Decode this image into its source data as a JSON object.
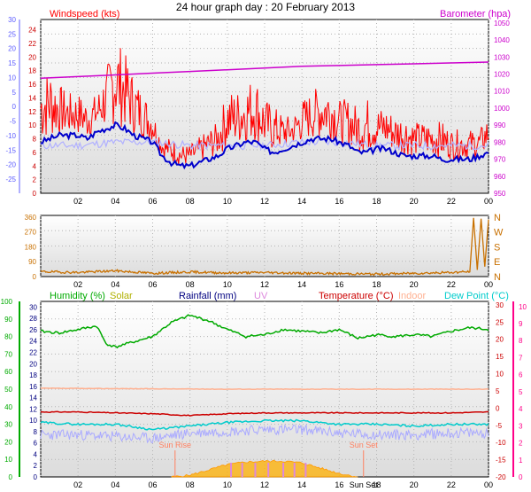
{
  "page": {
    "title": "24 hour graph day : 20 February 2013"
  },
  "colors": {
    "bg": "#ffffff",
    "plot_bg_top": "#ffffff",
    "plot_bg_bottom": "#dcdcdc",
    "grid": "#b4b4b4",
    "windspeed": "#ff0000",
    "windavg": "#0000cc",
    "windchill_light": "#b0b0ff",
    "barometer": "#cc00cc",
    "direction": "#c87000",
    "humidity": "#00aa00",
    "solar": "#ffb000",
    "solar_label": "#b0b000",
    "rainfall": "#000080",
    "uv": "#dd88dd",
    "temperature": "#cc0000",
    "indoor": "#ffb090",
    "dewpoint": "#00cccc",
    "dewpoint_light": "#aaaaff",
    "sun_marker": "#ff8060",
    "left_axis_wind": "#cc0000",
    "left_axis_blue": "#6060ff",
    "left_axis_green": "#00aa00",
    "right_axis_pink": "#ff0088"
  },
  "chart_data": [
    {
      "id": "wind",
      "type": "line",
      "x_labels": [
        "02",
        "04",
        "06",
        "08",
        "10",
        "12",
        "14",
        "16",
        "18",
        "20",
        "22",
        "00"
      ],
      "xlim": [
        0,
        24
      ],
      "legend_left": "Windspeed (kts)",
      "legend_right": "Barometer (hpa)",
      "left_ticks_outer": [
        "-25",
        "-20",
        "-15",
        "-10",
        "-5",
        "0",
        "5",
        "10",
        "15",
        "20",
        "25",
        "30"
      ],
      "left_ticks_inner": [
        "0",
        "2",
        "4",
        "6",
        "8",
        "10",
        "12",
        "14",
        "16",
        "18",
        "20",
        "22",
        "24"
      ],
      "right_ticks": [
        "950",
        "960",
        "970",
        "980",
        "990",
        "1000",
        "1010",
        "1020",
        "1030",
        "1040",
        "1050"
      ],
      "ylim": [
        0,
        25.5
      ],
      "y2lim": [
        950,
        1052
      ],
      "grid": true,
      "series": [
        {
          "key": "gust",
          "x": [
            0.0,
            0.5,
            1.0,
            1.5,
            2.0,
            2.5,
            3.0,
            3.5,
            4.0,
            4.5,
            5.0,
            5.5,
            6.0,
            6.5,
            7.0,
            7.5,
            8.0,
            8.5,
            9.0,
            9.5,
            10.0,
            10.5,
            11.0,
            11.5,
            12.0,
            12.5,
            13.0,
            13.5,
            14.0,
            14.5,
            15.0,
            15.5,
            16.0,
            16.5,
            17.0,
            17.5,
            18.0,
            18.5,
            19.0,
            19.5,
            20.0,
            20.5,
            21.0,
            21.5,
            22.0,
            22.5,
            23.0,
            23.5,
            24.0
          ],
          "y": [
            14,
            15,
            13,
            12,
            12,
            11,
            12,
            15,
            19,
            17,
            14,
            12,
            10,
            6,
            6,
            5,
            5,
            6,
            7,
            8,
            12,
            12,
            13,
            14,
            11,
            10,
            9,
            9,
            11,
            12,
            13,
            13,
            11,
            11,
            10,
            11,
            10,
            10,
            9,
            9,
            8,
            8,
            8,
            8,
            7,
            7,
            7,
            7,
            9
          ]
        },
        {
          "key": "average",
          "x": [
            0.0,
            0.5,
            1.0,
            1.5,
            2.0,
            2.5,
            3.0,
            3.5,
            4.0,
            4.5,
            5.0,
            5.5,
            6.0,
            6.5,
            7.0,
            7.5,
            8.0,
            8.5,
            9.0,
            9.5,
            10.0,
            10.5,
            11.0,
            11.5,
            12.0,
            12.5,
            13.0,
            13.5,
            14.0,
            14.5,
            15.0,
            15.5,
            16.0,
            16.5,
            17.0,
            17.5,
            18.0,
            18.5,
            19.0,
            19.5,
            20.0,
            20.5,
            21.0,
            21.5,
            22.0,
            22.5,
            23.0,
            23.5,
            24.0
          ],
          "y": [
            7.5,
            8,
            8.5,
            8.5,
            8.5,
            8,
            9,
            9.5,
            10,
            9.5,
            8.5,
            8,
            7.5,
            5.5,
            4.5,
            4,
            4,
            4.5,
            5,
            5.5,
            6.5,
            7,
            7.5,
            7.5,
            6.5,
            6,
            6.5,
            7,
            7.5,
            8,
            8,
            8,
            7.5,
            7,
            6,
            6,
            6.5,
            6.5,
            6,
            5.5,
            5.5,
            5.5,
            5.5,
            5,
            5,
            5,
            5,
            5.5,
            6
          ]
        },
        {
          "key": "windchill",
          "x": [
            0,
            2,
            4,
            6,
            8,
            10,
            12,
            14,
            16,
            18,
            20,
            22,
            24
          ],
          "y": [
            7,
            7,
            7.5,
            7.5,
            7,
            7,
            7,
            7.5,
            7.5,
            7,
            7,
            7,
            7
          ]
        },
        {
          "key": "barometer",
          "axis": "right",
          "x": [
            0,
            2,
            4,
            6,
            8,
            10,
            12,
            14,
            16,
            18,
            20,
            22,
            24
          ],
          "y": [
            1017.5,
            1018.5,
            1019.5,
            1020.5,
            1021.5,
            1022.5,
            1023.5,
            1024.5,
            1025,
            1025.5,
            1026,
            1026.5,
            1027
          ]
        }
      ]
    },
    {
      "id": "direction",
      "type": "line",
      "x_labels": [
        "02",
        "04",
        "06",
        "08",
        "10",
        "12",
        "14",
        "16",
        "18",
        "20",
        "22",
        "00"
      ],
      "xlim": [
        0,
        24
      ],
      "left_ticks": [
        "0",
        "90",
        "180",
        "270",
        "360"
      ],
      "right_labels": [
        "N",
        "W",
        "S",
        "E",
        "N"
      ],
      "ylim": [
        0,
        370
      ],
      "grid": true,
      "series": [
        {
          "key": "direction",
          "x": [
            0,
            2,
            4,
            6,
            8,
            10,
            12,
            14,
            16,
            18,
            20,
            22,
            23,
            23.2,
            23.4,
            23.6,
            23.8,
            24
          ],
          "y": [
            30,
            25,
            35,
            20,
            28,
            22,
            25,
            20,
            18,
            15,
            20,
            25,
            30,
            355,
            40,
            350,
            60,
            345
          ]
        }
      ]
    },
    {
      "id": "temperature",
      "type": "line",
      "x_labels": [
        "02",
        "04",
        "06",
        "08",
        "10",
        "12",
        "14",
        "16",
        "Sun Set",
        "18",
        "20",
        "22",
        "00"
      ],
      "xlim": [
        0,
        24
      ],
      "legend": [
        "Humidity (%)",
        "Solar",
        "Rainfall (mm)",
        "UV",
        "Temperature (°C)",
        "Indoor",
        "Dew Point (°C)"
      ],
      "left_ticks_outer": [
        "0",
        "10",
        "20",
        "30",
        "40",
        "50",
        "60",
        "70",
        "80",
        "90",
        "100"
      ],
      "left_ticks_inner": [
        "0",
        "2",
        "4",
        "6",
        "8",
        "10",
        "12",
        "14",
        "16",
        "18",
        "20",
        "22",
        "24",
        "26",
        "28",
        "30"
      ],
      "right_ticks_inner": [
        "-20",
        "-15",
        "-10",
        "-5",
        "0",
        "5",
        "10",
        "15",
        "20",
        "25",
        "30"
      ],
      "right_ticks_outer": [
        "0",
        "1",
        "2",
        "3",
        "4",
        "5",
        "6",
        "7",
        "8",
        "9",
        "10"
      ],
      "ylim": [
        0,
        100
      ],
      "annotations": [
        {
          "text": "Sun Rise",
          "x": 7.2
        },
        {
          "text": "Sun Set",
          "x": 17.3
        }
      ],
      "grid": true,
      "series": [
        {
          "key": "humidity",
          "x": [
            0,
            1,
            2,
            3,
            3.5,
            4,
            5,
            6,
            7,
            8,
            9,
            10,
            11,
            12,
            13,
            14,
            15,
            16,
            17,
            18,
            19,
            20,
            21,
            22,
            23,
            24
          ],
          "y": [
            83,
            82,
            84,
            86,
            76,
            74,
            77,
            80,
            88,
            92,
            89,
            84,
            80,
            81,
            84,
            83,
            82,
            84,
            79,
            81,
            80,
            81,
            80,
            83,
            85,
            84
          ]
        },
        {
          "key": "indoor",
          "x": [
            0,
            2,
            4,
            6,
            8,
            10,
            12,
            14,
            16,
            18,
            20,
            22,
            24
          ],
          "y": [
            50.5,
            50.4,
            50.3,
            50.2,
            50.1,
            50.0,
            50.0,
            50.0,
            50.0,
            50.0,
            50.0,
            50.0,
            50.0
          ]
        },
        {
          "key": "temperature",
          "x": [
            0,
            2,
            4,
            6,
            8,
            10,
            12,
            14,
            16,
            18,
            20,
            22,
            24
          ],
          "y": [
            37,
            37,
            36.5,
            36,
            35,
            36,
            36.5,
            36.5,
            36.5,
            36.5,
            36.5,
            36.5,
            37
          ]
        },
        {
          "key": "dewpoint",
          "x": [
            0,
            2,
            4,
            6,
            8,
            10,
            12,
            14,
            16,
            18,
            20,
            22,
            24
          ],
          "y": [
            31,
            30,
            30,
            27,
            29,
            31,
            32,
            32,
            30,
            30,
            29,
            30,
            30
          ]
        },
        {
          "key": "dewpoint_light",
          "x": [
            0,
            2,
            4,
            6,
            8,
            10,
            12,
            14,
            16,
            18,
            20,
            22,
            24
          ],
          "y": [
            24,
            24,
            23,
            22,
            25,
            26,
            27,
            27,
            25,
            24,
            24,
            25,
            25
          ]
        },
        {
          "key": "solar",
          "x": [
            7,
            8,
            9,
            10,
            11,
            12,
            13,
            14,
            15,
            16,
            17
          ],
          "y": [
            0,
            1,
            4,
            7,
            8.5,
            9,
            9,
            8,
            5,
            2,
            0
          ]
        }
      ]
    }
  ]
}
